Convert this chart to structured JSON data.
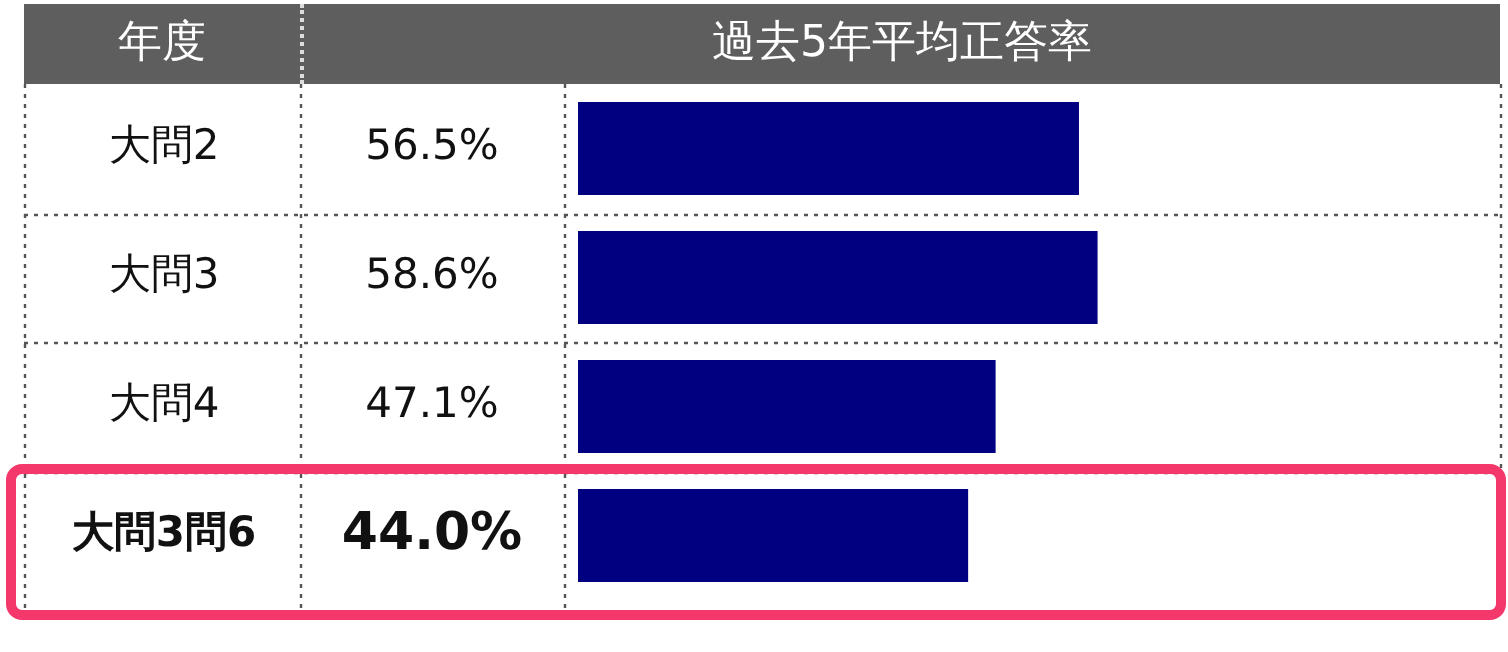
{
  "chart_data": {
    "type": "bar",
    "orientation": "horizontal",
    "title": "過去5年平均正答率",
    "ylabel": "年度",
    "categories": [
      "大問2",
      "大問3",
      "大問4",
      "大問3問6"
    ],
    "values": [
      56.5,
      58.6,
      47.1,
      44.0
    ],
    "value_labels": [
      "56.5%",
      "58.6%",
      "47.1%",
      "44.0%"
    ],
    "color": "#000080",
    "tick_labels": "y"
  }
}
